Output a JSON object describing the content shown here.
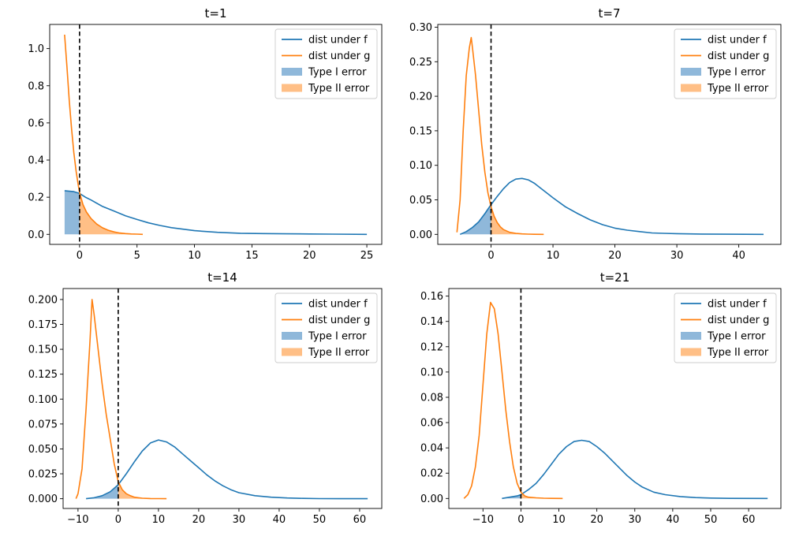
{
  "chart_data": [
    {
      "type": "line",
      "title": "t=1",
      "xlim": [
        -2.6,
        26.3
      ],
      "ylim": [
        -0.054,
        1.13
      ],
      "xticks": [
        0,
        5,
        10,
        15,
        20,
        25
      ],
      "yticks": [
        0.0,
        0.2,
        0.4,
        0.6,
        0.8,
        1.0
      ],
      "ytick_labels": [
        "0.0",
        "0.2",
        "0.4",
        "0.6",
        "0.8",
        "1.0"
      ],
      "threshold": 0,
      "legend": [
        "dist under f",
        "dist under g",
        "Type I error",
        "Type II error"
      ],
      "legend_position": "top-right",
      "series": [
        {
          "name": "dist under f",
          "x": [
            -1.3,
            -0.5,
            0,
            0.5,
            1,
            2,
            3,
            4,
            5,
            6,
            7,
            8,
            9,
            10,
            11,
            12,
            14,
            16,
            18,
            20,
            22,
            25
          ],
          "y": [
            0.235,
            0.23,
            0.22,
            0.2,
            0.185,
            0.15,
            0.125,
            0.1,
            0.08,
            0.062,
            0.048,
            0.036,
            0.028,
            0.02,
            0.015,
            0.011,
            0.006,
            0.004,
            0.003,
            0.002,
            0.001,
            0.0
          ]
        },
        {
          "name": "dist under g",
          "x": [
            -1.3,
            -1.1,
            -0.9,
            -0.7,
            -0.5,
            -0.3,
            -0.1,
            0,
            0.3,
            0.6,
            1,
            1.5,
            2,
            2.5,
            3,
            3.5,
            4,
            4.5,
            5,
            5.5
          ],
          "y": [
            1.075,
            0.9,
            0.72,
            0.57,
            0.44,
            0.34,
            0.26,
            0.225,
            0.16,
            0.12,
            0.085,
            0.055,
            0.035,
            0.022,
            0.013,
            0.007,
            0.004,
            0.002,
            0.001,
            0.0
          ]
        }
      ]
    },
    {
      "type": "line",
      "title": "t=7",
      "xlim": [
        -8.6,
        46.8
      ],
      "ylim": [
        -0.0145,
        0.304
      ],
      "xticks": [
        0,
        10,
        20,
        30,
        40
      ],
      "yticks": [
        0.0,
        0.05,
        0.1,
        0.15,
        0.2,
        0.25,
        0.3
      ],
      "ytick_labels": [
        "0.00",
        "0.05",
        "0.10",
        "0.15",
        "0.20",
        "0.25",
        "0.30"
      ],
      "threshold": 0,
      "legend": [
        "dist under f",
        "dist under g",
        "Type I error",
        "Type II error"
      ],
      "legend_position": "top-right",
      "series": [
        {
          "name": "dist under f",
          "x": [
            -5,
            -4,
            -3,
            -2,
            -1,
            0,
            1,
            2,
            3,
            4,
            5,
            6,
            7,
            8,
            9,
            10,
            12,
            14,
            16,
            18,
            20,
            22,
            24,
            26,
            28,
            30,
            34,
            38,
            44
          ],
          "y": [
            0.0,
            0.004,
            0.01,
            0.018,
            0.03,
            0.043,
            0.055,
            0.066,
            0.075,
            0.08,
            0.081,
            0.079,
            0.074,
            0.067,
            0.06,
            0.053,
            0.04,
            0.03,
            0.021,
            0.014,
            0.009,
            0.006,
            0.004,
            0.002,
            0.0015,
            0.001,
            0.0005,
            0.0002,
            0.0
          ]
        },
        {
          "name": "dist under g",
          "x": [
            -5.5,
            -5,
            -4.5,
            -4,
            -3.5,
            -3.2,
            -3,
            -2.5,
            -2,
            -1.5,
            -1,
            -0.5,
            0,
            0.5,
            1,
            1.5,
            2,
            3,
            4,
            5,
            6,
            7,
            8.5
          ],
          "y": [
            0.003,
            0.05,
            0.15,
            0.23,
            0.27,
            0.285,
            0.27,
            0.23,
            0.18,
            0.13,
            0.09,
            0.06,
            0.04,
            0.026,
            0.017,
            0.011,
            0.007,
            0.003,
            0.0015,
            0.0007,
            0.0003,
            0.0001,
            0.0
          ]
        }
      ]
    },
    {
      "type": "line",
      "title": "t=14",
      "xlim": [
        -13.7,
        65.5
      ],
      "ylim": [
        -0.0098,
        0.211
      ],
      "xticks": [
        -10,
        0,
        10,
        20,
        30,
        40,
        50,
        60
      ],
      "yticks": [
        0.0,
        0.025,
        0.05,
        0.075,
        0.1,
        0.125,
        0.15,
        0.175,
        0.2
      ],
      "ytick_labels": [
        "0.000",
        "0.025",
        "0.050",
        "0.075",
        "0.100",
        "0.125",
        "0.150",
        "0.175",
        "0.200"
      ],
      "threshold": 0,
      "legend": [
        "dist under f",
        "dist under g",
        "Type I error",
        "Type II error"
      ],
      "legend_position": "top-right",
      "series": [
        {
          "name": "dist under f",
          "x": [
            -8,
            -6,
            -4,
            -2,
            0,
            2,
            4,
            6,
            8,
            10,
            12,
            14,
            16,
            18,
            20,
            22,
            24,
            26,
            28,
            30,
            34,
            38,
            42,
            46,
            50,
            55,
            62
          ],
          "y": [
            0.0,
            0.001,
            0.003,
            0.007,
            0.014,
            0.025,
            0.037,
            0.048,
            0.056,
            0.059,
            0.057,
            0.052,
            0.045,
            0.038,
            0.031,
            0.024,
            0.018,
            0.013,
            0.009,
            0.006,
            0.003,
            0.0015,
            0.0007,
            0.0003,
            0.0001,
            0.0,
            0.0
          ]
        },
        {
          "name": "dist under g",
          "x": [
            -10.5,
            -10,
            -9,
            -8,
            -7,
            -6.5,
            -6,
            -5,
            -4,
            -3,
            -2,
            -1,
            0,
            1,
            2,
            3,
            4,
            5,
            6,
            8,
            10,
            12
          ],
          "y": [
            0.0,
            0.005,
            0.03,
            0.09,
            0.16,
            0.2,
            0.185,
            0.15,
            0.115,
            0.085,
            0.06,
            0.035,
            0.017,
            0.009,
            0.005,
            0.003,
            0.0015,
            0.001,
            0.0005,
            0.0002,
            0.0001,
            0.0
          ]
        }
      ]
    },
    {
      "type": "line",
      "title": "t=21",
      "xlim": [
        -19.0,
        68.5
      ],
      "ylim": [
        -0.0079,
        0.166
      ],
      "xticks": [
        -10,
        0,
        10,
        20,
        30,
        40,
        50,
        60
      ],
      "yticks": [
        0.0,
        0.02,
        0.04,
        0.06,
        0.08,
        0.1,
        0.12,
        0.14,
        0.16
      ],
      "ytick_labels": [
        "0.00",
        "0.02",
        "0.04",
        "0.06",
        "0.08",
        "0.10",
        "0.12",
        "0.14",
        "0.16"
      ],
      "threshold": 0,
      "legend": [
        "dist under f",
        "dist under g",
        "Type I error",
        "Type II error"
      ],
      "legend_position": "top-right",
      "series": [
        {
          "name": "dist under f",
          "x": [
            -5,
            -3,
            -1,
            0,
            2,
            4,
            6,
            8,
            10,
            12,
            14,
            16,
            18,
            20,
            22,
            24,
            26,
            28,
            30,
            32,
            35,
            38,
            42,
            46,
            50,
            55,
            65
          ],
          "y": [
            0.0,
            0.001,
            0.002,
            0.003,
            0.007,
            0.012,
            0.019,
            0.027,
            0.035,
            0.041,
            0.045,
            0.046,
            0.045,
            0.041,
            0.036,
            0.03,
            0.024,
            0.018,
            0.013,
            0.009,
            0.005,
            0.003,
            0.0015,
            0.0007,
            0.0003,
            0.0001,
            0.0
          ]
        },
        {
          "name": "dist under g",
          "x": [
            -15,
            -14,
            -13,
            -12,
            -11,
            -10,
            -9,
            -8,
            -7,
            -6,
            -5,
            -4,
            -3,
            -2,
            -1,
            0,
            1,
            2,
            4,
            6,
            8,
            11
          ],
          "y": [
            0.0,
            0.003,
            0.01,
            0.025,
            0.05,
            0.09,
            0.13,
            0.155,
            0.15,
            0.13,
            0.1,
            0.07,
            0.045,
            0.025,
            0.012,
            0.005,
            0.002,
            0.001,
            0.0005,
            0.0002,
            0.0001,
            0.0
          ]
        }
      ]
    }
  ],
  "colors": {
    "f_line": "#1f77b4",
    "g_line": "#ff7f0e",
    "type1_fill": "#8fb8da",
    "type2_fill": "#ffbf86",
    "threshold": "#000000"
  }
}
